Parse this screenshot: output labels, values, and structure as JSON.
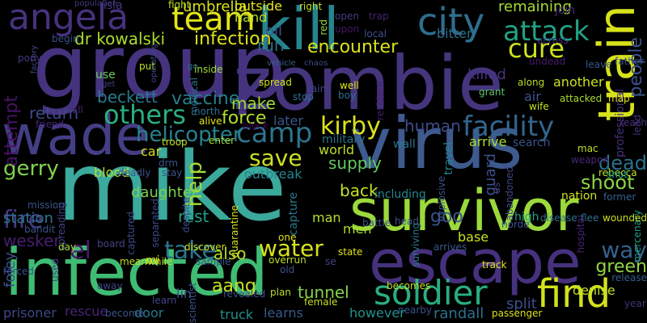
{
  "wordcloud": {
    "background": "#000000",
    "words": [
      {
        "text": "mike",
        "color": "#3ba99c"
      },
      {
        "text": "zombie",
        "color": "#44357d"
      },
      {
        "text": "group",
        "color": "#46337f"
      },
      {
        "text": "virus",
        "color": "#3e5a8e"
      },
      {
        "text": "infected",
        "color": "#3fbc73"
      },
      {
        "text": "survivor",
        "color": "#9bd93c"
      },
      {
        "text": "escape",
        "color": "#46317e"
      },
      {
        "text": "wade",
        "color": "#433e85"
      },
      {
        "text": "kill",
        "color": "#25858e"
      },
      {
        "text": "train",
        "color": "#d6e21a"
      },
      {
        "text": "angela",
        "color": "#46327e"
      },
      {
        "text": "city",
        "color": "#2e6e8e"
      },
      {
        "text": "team",
        "color": "#e3e418"
      },
      {
        "text": "find",
        "color": "#d2e21b"
      },
      {
        "text": "soldier",
        "color": "#28ae80"
      },
      {
        "text": "attack",
        "color": "#20a386"
      },
      {
        "text": "camp",
        "color": "#2b758e"
      },
      {
        "text": "others",
        "color": "#29af7f"
      },
      {
        "text": "facility",
        "color": "#31668e"
      },
      {
        "text": "cure",
        "color": "#cde11d"
      },
      {
        "text": "take",
        "color": "#2c738e"
      },
      {
        "text": "kirby",
        "color": "#dde318"
      },
      {
        "text": "helicopter",
        "color": "#26828e"
      },
      {
        "text": "save",
        "color": "#c8e020"
      },
      {
        "text": "help",
        "color": "#a5db36"
      },
      {
        "text": "encounter",
        "color": "#dae319"
      },
      {
        "text": "shoot",
        "color": "#8bd646"
      },
      {
        "text": "fire",
        "color": "#443983"
      },
      {
        "text": "gerry",
        "color": "#81d34d"
      },
      {
        "text": "water",
        "color": "#d8e219"
      },
      {
        "text": "way",
        "color": "#33628d"
      },
      {
        "text": "dead",
        "color": "#2c718e"
      },
      {
        "text": "green",
        "color": "#90d743"
      },
      {
        "text": "vaccine",
        "color": "#277f8e"
      },
      {
        "text": "beckett",
        "color": "#29798e"
      },
      {
        "text": "attempt",
        "color": "#471365"
      },
      {
        "text": "return",
        "color": "#3e4989"
      },
      {
        "text": "force",
        "color": "#b0dd2f"
      },
      {
        "text": "infection",
        "color": "#dde318"
      },
      {
        "text": "dr kowalski",
        "color": "#addc30"
      },
      {
        "text": "umbrella",
        "color": "#d8e219"
      },
      {
        "text": "remaining",
        "color": "#a8db34"
      },
      {
        "text": "people",
        "color": "#3b528b"
      },
      {
        "text": "el",
        "color": "#481a6c"
      },
      {
        "text": "aang",
        "color": "#c5e021"
      },
      {
        "text": "foley",
        "color": "#3c4f8a"
      },
      {
        "text": "rest",
        "color": "#1fa188"
      },
      {
        "text": "make",
        "color": "#9fda3a"
      },
      {
        "text": "human",
        "color": "#3e4c8a"
      },
      {
        "text": "supply",
        "color": "#63cb5f"
      },
      {
        "text": "station",
        "color": "#2d718e"
      },
      {
        "text": "wesker",
        "color": "#481d6f"
      },
      {
        "text": "goo",
        "color": "#3a548c"
      },
      {
        "text": "back",
        "color": "#c5e021"
      },
      {
        "text": "also",
        "color": "#b5de2b"
      },
      {
        "text": "rescue",
        "color": "#482576"
      },
      {
        "text": "prisoner",
        "color": "#3f4889"
      },
      {
        "text": "door",
        "color": "#2a788e"
      },
      {
        "text": "lin",
        "color": "#404688"
      },
      {
        "text": "truck",
        "color": "#21918c"
      },
      {
        "text": "learns",
        "color": "#38598c"
      },
      {
        "text": "however",
        "color": "#21918c"
      },
      {
        "text": "tunnel",
        "color": "#84d44b"
      },
      {
        "text": "randall",
        "color": "#2d708e"
      },
      {
        "text": "split",
        "color": "#3d4e8a"
      },
      {
        "text": "denise",
        "color": "#c2df23"
      },
      {
        "text": "run",
        "color": "#2d708e"
      },
      {
        "text": "oil",
        "color": "#3a538b"
      },
      {
        "text": "hand",
        "color": "#b8de29"
      },
      {
        "text": "outside",
        "color": "#e7e419"
      },
      {
        "text": "fight",
        "color": "#bddf26"
      },
      {
        "text": "isla",
        "color": "#453781"
      },
      {
        "text": "later",
        "color": "#38598c"
      },
      {
        "text": "bitten",
        "color": "#2e6f8e"
      },
      {
        "text": "killed",
        "color": "#46327e"
      },
      {
        "text": "another",
        "color": "#cae11f"
      },
      {
        "text": "use",
        "color": "#6ccd5a"
      },
      {
        "text": "blood",
        "color": "#b2dd2d"
      },
      {
        "text": "car",
        "color": "#d5e21a"
      },
      {
        "text": "daughter",
        "color": "#7ad151"
      },
      {
        "text": "outbreak",
        "color": "#25848e"
      },
      {
        "text": "capture",
        "color": "#2a768e"
      },
      {
        "text": "world",
        "color": "#bade28"
      },
      {
        "text": "military",
        "color": "#2c728e"
      },
      {
        "text": "arrive",
        "color": "#addc30"
      },
      {
        "text": "search",
        "color": "#3b518b"
      },
      {
        "text": "travel",
        "color": "#24868e"
      },
      {
        "text": "guard",
        "color": "#3b518b"
      },
      {
        "text": "nation",
        "color": "#cde11d"
      },
      {
        "text": "man",
        "color": "#b5de2b"
      },
      {
        "text": "men",
        "color": "#a8db34"
      },
      {
        "text": "base",
        "color": "#c8e020"
      },
      {
        "text": "including",
        "color": "#24868e"
      },
      {
        "text": "wall",
        "color": "#2a768e"
      },
      {
        "text": "arrives",
        "color": "#38598c"
      },
      {
        "text": "grant",
        "color": "#5cc863"
      },
      {
        "text": "air",
        "color": "#3b528b"
      },
      {
        "text": "rebecca",
        "color": "#c0df25"
      },
      {
        "text": "professional",
        "color": "#46307e"
      },
      {
        "text": "mercenary",
        "color": "#1fa187"
      },
      {
        "text": "hospital",
        "color": "#482576"
      },
      {
        "text": "release",
        "color": "#355e8d"
      },
      {
        "text": "year",
        "color": "#46317e"
      },
      {
        "text": "passenger",
        "color": "#d8e219"
      },
      {
        "text": "wounded",
        "color": "#c8e020"
      },
      {
        "text": "former",
        "color": "#35608d"
      },
      {
        "text": "disease",
        "color": "#2e6f8e"
      },
      {
        "text": "flee",
        "color": "#2e6f8e"
      },
      {
        "text": "join",
        "color": "#472d7b"
      },
      {
        "text": "horde",
        "color": "#3b518b"
      },
      {
        "text": "high",
        "color": "#20a386"
      },
      {
        "text": "shot",
        "color": "#1fa187"
      },
      {
        "text": "weapon",
        "color": "#482677"
      },
      {
        "text": "map",
        "color": "#e5e419"
      },
      {
        "text": "attacked",
        "color": "#a8db34"
      },
      {
        "text": "wife",
        "color": "#c5e021"
      },
      {
        "text": "along",
        "color": "#b5de2b"
      },
      {
        "text": "undead",
        "color": "#481a6c"
      },
      {
        "text": "leave",
        "color": "#39568c"
      },
      {
        "text": "father",
        "color": "#3a538b"
      },
      {
        "text": "across",
        "color": "#472d7b"
      },
      {
        "text": "trap",
        "color": "#482071"
      },
      {
        "text": "local",
        "color": "#3b528b"
      },
      {
        "text": "open",
        "color": "#433d84"
      },
      {
        "text": "upon",
        "color": "#481668"
      },
      {
        "text": "right",
        "color": "#c2df23"
      },
      {
        "text": "red",
        "color": "#a0da39"
      },
      {
        "text": "inside",
        "color": "#a0da39"
      },
      {
        "text": "go",
        "color": "#2c738e"
      },
      {
        "text": "medical",
        "color": "#2e6f8e"
      },
      {
        "text": "population",
        "color": "#453882"
      },
      {
        "text": "begin",
        "color": "#3b518b"
      },
      {
        "text": "factory",
        "color": "#3e4989"
      },
      {
        "text": "pony",
        "color": "#453781"
      },
      {
        "text": "put",
        "color": "#c2df23"
      },
      {
        "text": "get",
        "color": "#414287"
      },
      {
        "text": "operating",
        "color": "#3e4989"
      },
      {
        "text": "vehicle",
        "color": "#34618d"
      },
      {
        "text": "chaos",
        "color": "#3e4989"
      },
      {
        "text": "spread",
        "color": "#d2e21b"
      },
      {
        "text": "rain",
        "color": "#3e4989"
      },
      {
        "text": "stop",
        "color": "#2e6f8e"
      },
      {
        "text": "well",
        "color": "#e5e419"
      },
      {
        "text": "boy",
        "color": "#2e6f8e"
      },
      {
        "text": "resident",
        "color": "#481f70"
      },
      {
        "text": "north",
        "color": "#2e6f8e"
      },
      {
        "text": "alive",
        "color": "#e5e419"
      },
      {
        "text": "tell",
        "color": "#482475"
      },
      {
        "text": "friend",
        "color": "#482576"
      },
      {
        "text": "troop",
        "color": "#c8e020"
      },
      {
        "text": "block",
        "color": "#440154"
      },
      {
        "text": "enter",
        "color": "#a5db36"
      },
      {
        "text": "deadly",
        "color": "#3b528b"
      },
      {
        "text": "drm",
        "color": "#3a538b"
      },
      {
        "text": "stay",
        "color": "#3a538b"
      },
      {
        "text": "explosive",
        "color": "#3b528b"
      },
      {
        "text": "us",
        "color": "#404688"
      },
      {
        "text": "abandoned",
        "color": "#404688"
      },
      {
        "text": "reach",
        "color": "#46327e"
      },
      {
        "text": "lead",
        "color": "#46327e"
      },
      {
        "text": "mac",
        "color": "#c2df23"
      },
      {
        "text": "battle",
        "color": "#3b528b"
      },
      {
        "text": "head",
        "color": "#3b528b"
      },
      {
        "text": "surviving",
        "color": "#2a788e"
      },
      {
        "text": "quarantine",
        "color": "#d5e21a"
      },
      {
        "text": "despite",
        "color": "#3e4989"
      },
      {
        "text": "separated",
        "color": "#3e4989"
      },
      {
        "text": "captured",
        "color": "#3e4989"
      },
      {
        "text": "spreading",
        "color": "#414287"
      },
      {
        "text": "mission",
        "color": "#3b528b"
      },
      {
        "text": "forced",
        "color": "#3b528b"
      },
      {
        "text": "bandit",
        "color": "#3b528b"
      },
      {
        "text": "day",
        "color": "#a5db36"
      },
      {
        "text": "board",
        "color": "#414487"
      },
      {
        "text": "meanwhile",
        "color": "#c2df23"
      },
      {
        "text": "mi",
        "color": "#e5e419"
      },
      {
        "text": "discover",
        "color": "#c8e020"
      },
      {
        "text": "sample",
        "color": "#3b528b"
      },
      {
        "text": "overrun",
        "color": "#bddf26"
      },
      {
        "text": "one",
        "color": "#e5e419"
      },
      {
        "text": "old",
        "color": "#3b528b"
      },
      {
        "text": "used",
        "color": "#414487"
      },
      {
        "text": "away",
        "color": "#414487"
      },
      {
        "text": "become",
        "color": "#3b528b"
      },
      {
        "text": "learn",
        "color": "#414487"
      },
      {
        "text": "scientist",
        "color": "#3b528b"
      },
      {
        "text": "revealed",
        "color": "#3b528b"
      },
      {
        "text": "plan",
        "color": "#bddf26"
      },
      {
        "text": "female",
        "color": "#c2df23"
      },
      {
        "text": "state",
        "color": "#e5e419"
      },
      {
        "text": "track",
        "color": "#e5e419"
      },
      {
        "text": "nearby",
        "color": "#3b528b"
      },
      {
        "text": "becomes",
        "color": "#c2df23"
      },
      {
        "text": "se",
        "color": "#414487"
      }
    ]
  }
}
